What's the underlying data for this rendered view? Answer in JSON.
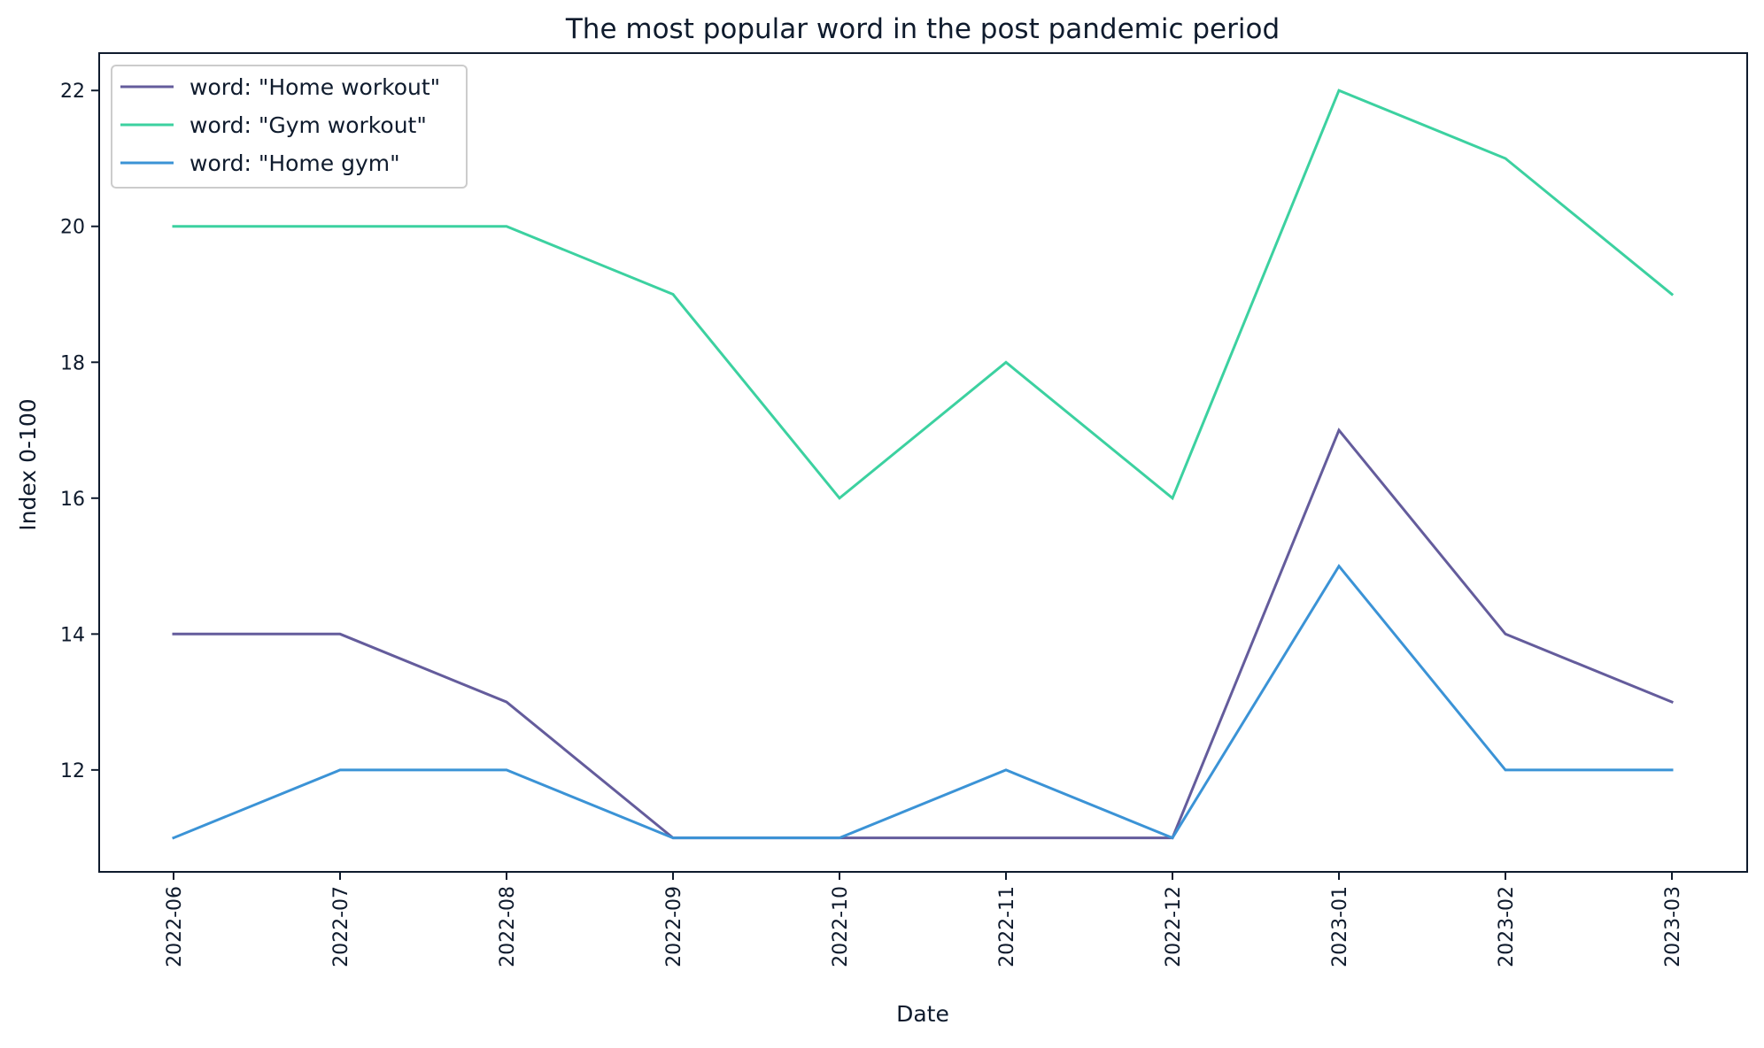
{
  "chart_data": {
    "type": "line",
    "title": "The most popular word in the post pandemic period",
    "xlabel": "Date",
    "ylabel": "Index 0-100",
    "x": [
      "2022-06",
      "2022-07",
      "2022-08",
      "2022-09",
      "2022-10",
      "2022-11",
      "2022-12",
      "2023-01",
      "2023-02",
      "2023-03"
    ],
    "ylim": [
      10.5,
      22.55
    ],
    "yticks": [
      12,
      14,
      16,
      18,
      20,
      22
    ],
    "grid": false,
    "legend_position": "top-left",
    "series": [
      {
        "name": "word: \"Home workout\"",
        "color": "#645c9c",
        "values": [
          14,
          14,
          13,
          11,
          11,
          11,
          11,
          17,
          14,
          13
        ]
      },
      {
        "name": "word: \"Gym workout\"",
        "color": "#3cd1a0",
        "values": [
          20,
          20,
          20,
          19,
          16,
          18,
          16,
          22,
          21,
          19
        ]
      },
      {
        "name": "word: \"Home gym\"",
        "color": "#3b93d6",
        "values": [
          11,
          12,
          12,
          11,
          11,
          12,
          11,
          15,
          12,
          12
        ]
      }
    ]
  }
}
